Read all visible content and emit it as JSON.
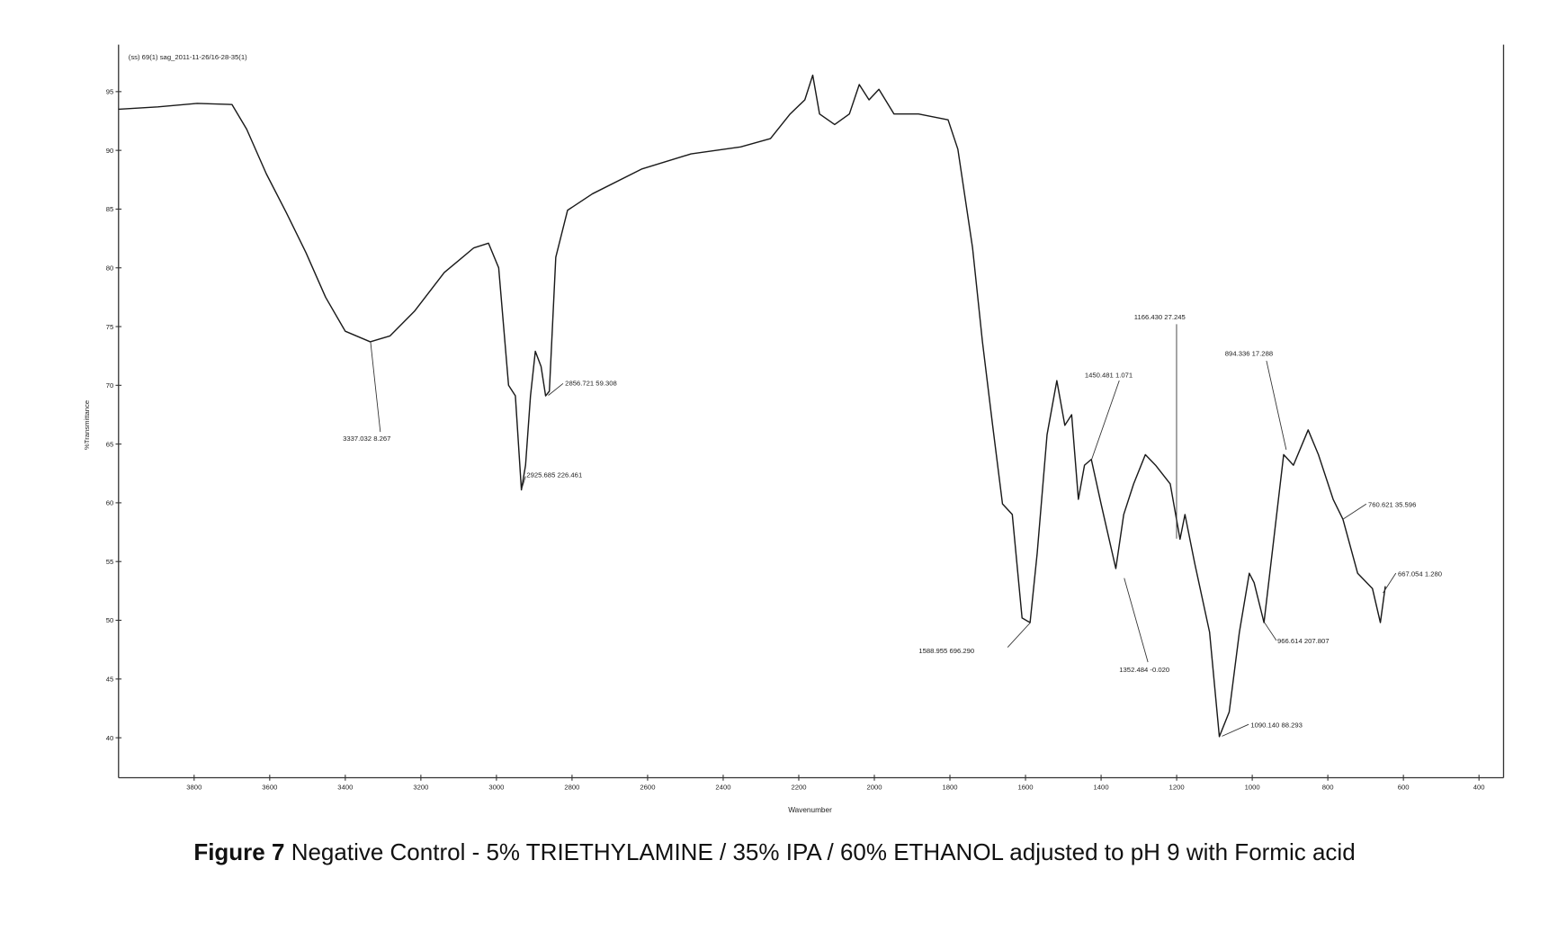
{
  "chart_data": {
    "type": "line",
    "header": "(ss) 69(1) sag_2011-11-26/16-28-35(1)",
    "x_label": "Wavenumber",
    "y_label": "%Transmittance",
    "caption": {
      "label": "Figure 7",
      "text": "Negative Control - 5% TRIETHYLAMINE / 35% IPA / 60% ETHANOL adjusted to pH 9 with Formic acid"
    },
    "xlim": [
      4000,
      335
    ],
    "ylim": [
      36.6,
      99
    ],
    "xticks": [
      3800,
      3600,
      3400,
      3200,
      3000,
      2800,
      2600,
      2400,
      2200,
      2000,
      1800,
      1600,
      1400,
      1200,
      1000,
      800,
      600,
      400
    ],
    "yticks": [
      40,
      45,
      50,
      55,
      60,
      65,
      70,
      75,
      80,
      85,
      90,
      95
    ],
    "series": [
      {
        "color": "#1a1a1a",
        "x": [
          4000,
          3896,
          3792,
          3700,
          3661,
          3609,
          3556,
          3504,
          3452,
          3400,
          3334,
          3282,
          3217,
          3138,
          3060,
          3021,
          2994,
          2968,
          2950,
          2934,
          2923,
          2910,
          2897,
          2882,
          2870,
          2860,
          2843,
          2812,
          2746,
          2616,
          2485,
          2354,
          2275,
          2223,
          2184,
          2163,
          2145,
          2105,
          2066,
          2040,
          2014,
          1988,
          1948,
          1883,
          1805,
          1779,
          1740,
          1714,
          1687,
          1661,
          1635,
          1609,
          1588,
          1569,
          1543,
          1517,
          1496,
          1478,
          1460,
          1444,
          1426,
          1400,
          1361,
          1340,
          1314,
          1283,
          1256,
          1217,
          1191,
          1178,
          1152,
          1113,
          1087,
          1061,
          1034,
          1008,
          995,
          969,
          943,
          917,
          891,
          852,
          825,
          786,
          760,
          721,
          682,
          661,
          648
        ],
        "values": [
          93.5,
          93.7,
          94,
          93.9,
          91.8,
          88,
          84.7,
          81.3,
          77.5,
          74.6,
          73.7,
          74.2,
          76.3,
          79.6,
          81.7,
          82.1,
          80,
          70,
          69.1,
          61.1,
          63.2,
          69.1,
          72.9,
          71.6,
          69.1,
          69.5,
          80.9,
          84.9,
          86.3,
          88.4,
          89.7,
          90.3,
          91,
          93.1,
          94.3,
          96.4,
          93.1,
          92.2,
          93.1,
          95.6,
          94.3,
          95.2,
          93.1,
          93.1,
          92.6,
          90.1,
          81.7,
          73.7,
          66.6,
          59.9,
          59,
          50.2,
          49.8,
          55.7,
          65.8,
          70.4,
          66.6,
          67.5,
          60.3,
          63.2,
          63.7,
          59.9,
          54.4,
          59,
          61.6,
          64.1,
          63.2,
          61.6,
          56.9,
          59,
          54.8,
          49,
          40.1,
          42.2,
          49,
          54,
          53.2,
          49.8,
          56.9,
          64.1,
          63.2,
          66.2,
          64.1,
          60.3,
          58.6,
          54,
          52.7,
          49.8,
          52.9
        ]
      }
    ],
    "annotations": [
      "3337.032 8.267",
      "2856.721 59.308",
      "2925.685 226.461",
      "1588.955 696.290",
      "1450.481 1.071",
      "1166.430 27.245",
      "1352.484 -0.020",
      "1090.140 88.293",
      "894.336 17.288",
      "966.614 207.807",
      "760.621 35.596",
      "667.054 1.280"
    ]
  }
}
